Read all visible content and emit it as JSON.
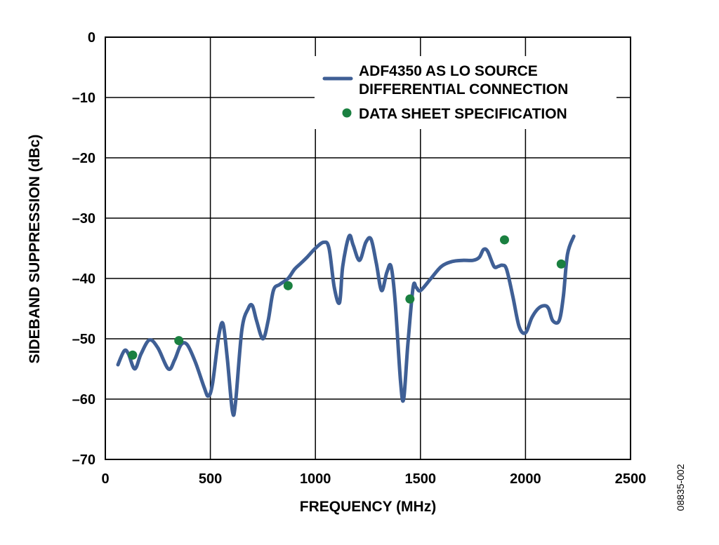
{
  "chart_data": {
    "type": "line",
    "xlabel": "FREQUENCY (MHz)",
    "ylabel": "SIDEBAND SUPPRESSION (dBc)",
    "xlim": [
      0,
      2500
    ],
    "ylim": [
      -70,
      0
    ],
    "x_ticks": [
      0,
      500,
      1000,
      1500,
      2000,
      2500
    ],
    "y_ticks": [
      0,
      -10,
      -20,
      -30,
      -40,
      -50,
      -60,
      -70
    ],
    "x_tick_labels": [
      "0",
      "500",
      "1000",
      "1500",
      "2000",
      "2500"
    ],
    "y_tick_labels": [
      "0",
      "–10",
      "–20",
      "–30",
      "–40",
      "–50",
      "–60",
      "–70"
    ],
    "grid": true,
    "legend_position": "top-right",
    "series": [
      {
        "name": "ADF4350 AS LO SOURCE DIFFERENTIAL CONNECTION",
        "legend_lines": [
          "ADF4350 AS LO SOURCE",
          "DIFFERENTIAL CONNECTION"
        ],
        "kind": "line",
        "color": "#3f5f95",
        "x": [
          60,
          90,
          110,
          140,
          170,
          210,
          250,
          300,
          330,
          360,
          390,
          430,
          470,
          490,
          510,
          540,
          560,
          580,
          605,
          620,
          650,
          680,
          700,
          720,
          750,
          775,
          800,
          830,
          870,
          900,
          930,
          960,
          1000,
          1040,
          1065,
          1090,
          1115,
          1130,
          1160,
          1180,
          1210,
          1240,
          1265,
          1290,
          1315,
          1340,
          1360,
          1380,
          1405,
          1420,
          1440,
          1465,
          1480,
          1500,
          1550,
          1600,
          1650,
          1700,
          1750,
          1780,
          1800,
          1820,
          1850,
          1870,
          1890,
          1910,
          1940,
          1970,
          2000,
          2030,
          2060,
          2090,
          2110,
          2130,
          2160,
          2180,
          2200,
          2230
        ],
        "y": [
          -54.3,
          -52.0,
          -52.5,
          -55.0,
          -52.5,
          -50.2,
          -51.5,
          -55.0,
          -53.5,
          -51.0,
          -51.0,
          -54.0,
          -58.0,
          -59.5,
          -57.5,
          -49.5,
          -47.5,
          -53.0,
          -62.0,
          -60.5,
          -48.5,
          -45.0,
          -44.5,
          -47.0,
          -50.0,
          -47.0,
          -42.0,
          -41.0,
          -40.0,
          -38.5,
          -37.5,
          -36.5,
          -35.0,
          -34.0,
          -35.0,
          -41.5,
          -44.0,
          -38.0,
          -33.0,
          -34.5,
          -37.0,
          -34.0,
          -33.5,
          -37.5,
          -42.0,
          -39.0,
          -38.0,
          -44.0,
          -57.0,
          -60.0,
          -51.0,
          -41.5,
          -41.5,
          -42.0,
          -40.0,
          -38.0,
          -37.2,
          -37.0,
          -37.0,
          -36.5,
          -35.2,
          -35.5,
          -38.0,
          -38.0,
          -37.8,
          -38.5,
          -43.0,
          -48.0,
          -49.0,
          -46.5,
          -45.0,
          -44.5,
          -45.0,
          -47.0,
          -47.0,
          -43.0,
          -36.0,
          -33.0
        ]
      },
      {
        "name": "DATA SHEET SPECIFICATION",
        "legend_lines": [
          "DATA SHEET SPECIFICATION"
        ],
        "kind": "scatter",
        "color": "#1a8040",
        "x": [
          130,
          350,
          870,
          1450,
          1900,
          2170
        ],
        "y": [
          -52.7,
          -50.3,
          -41.2,
          -43.4,
          -33.6,
          -37.6
        ]
      }
    ]
  },
  "figure_id": "08835-002"
}
